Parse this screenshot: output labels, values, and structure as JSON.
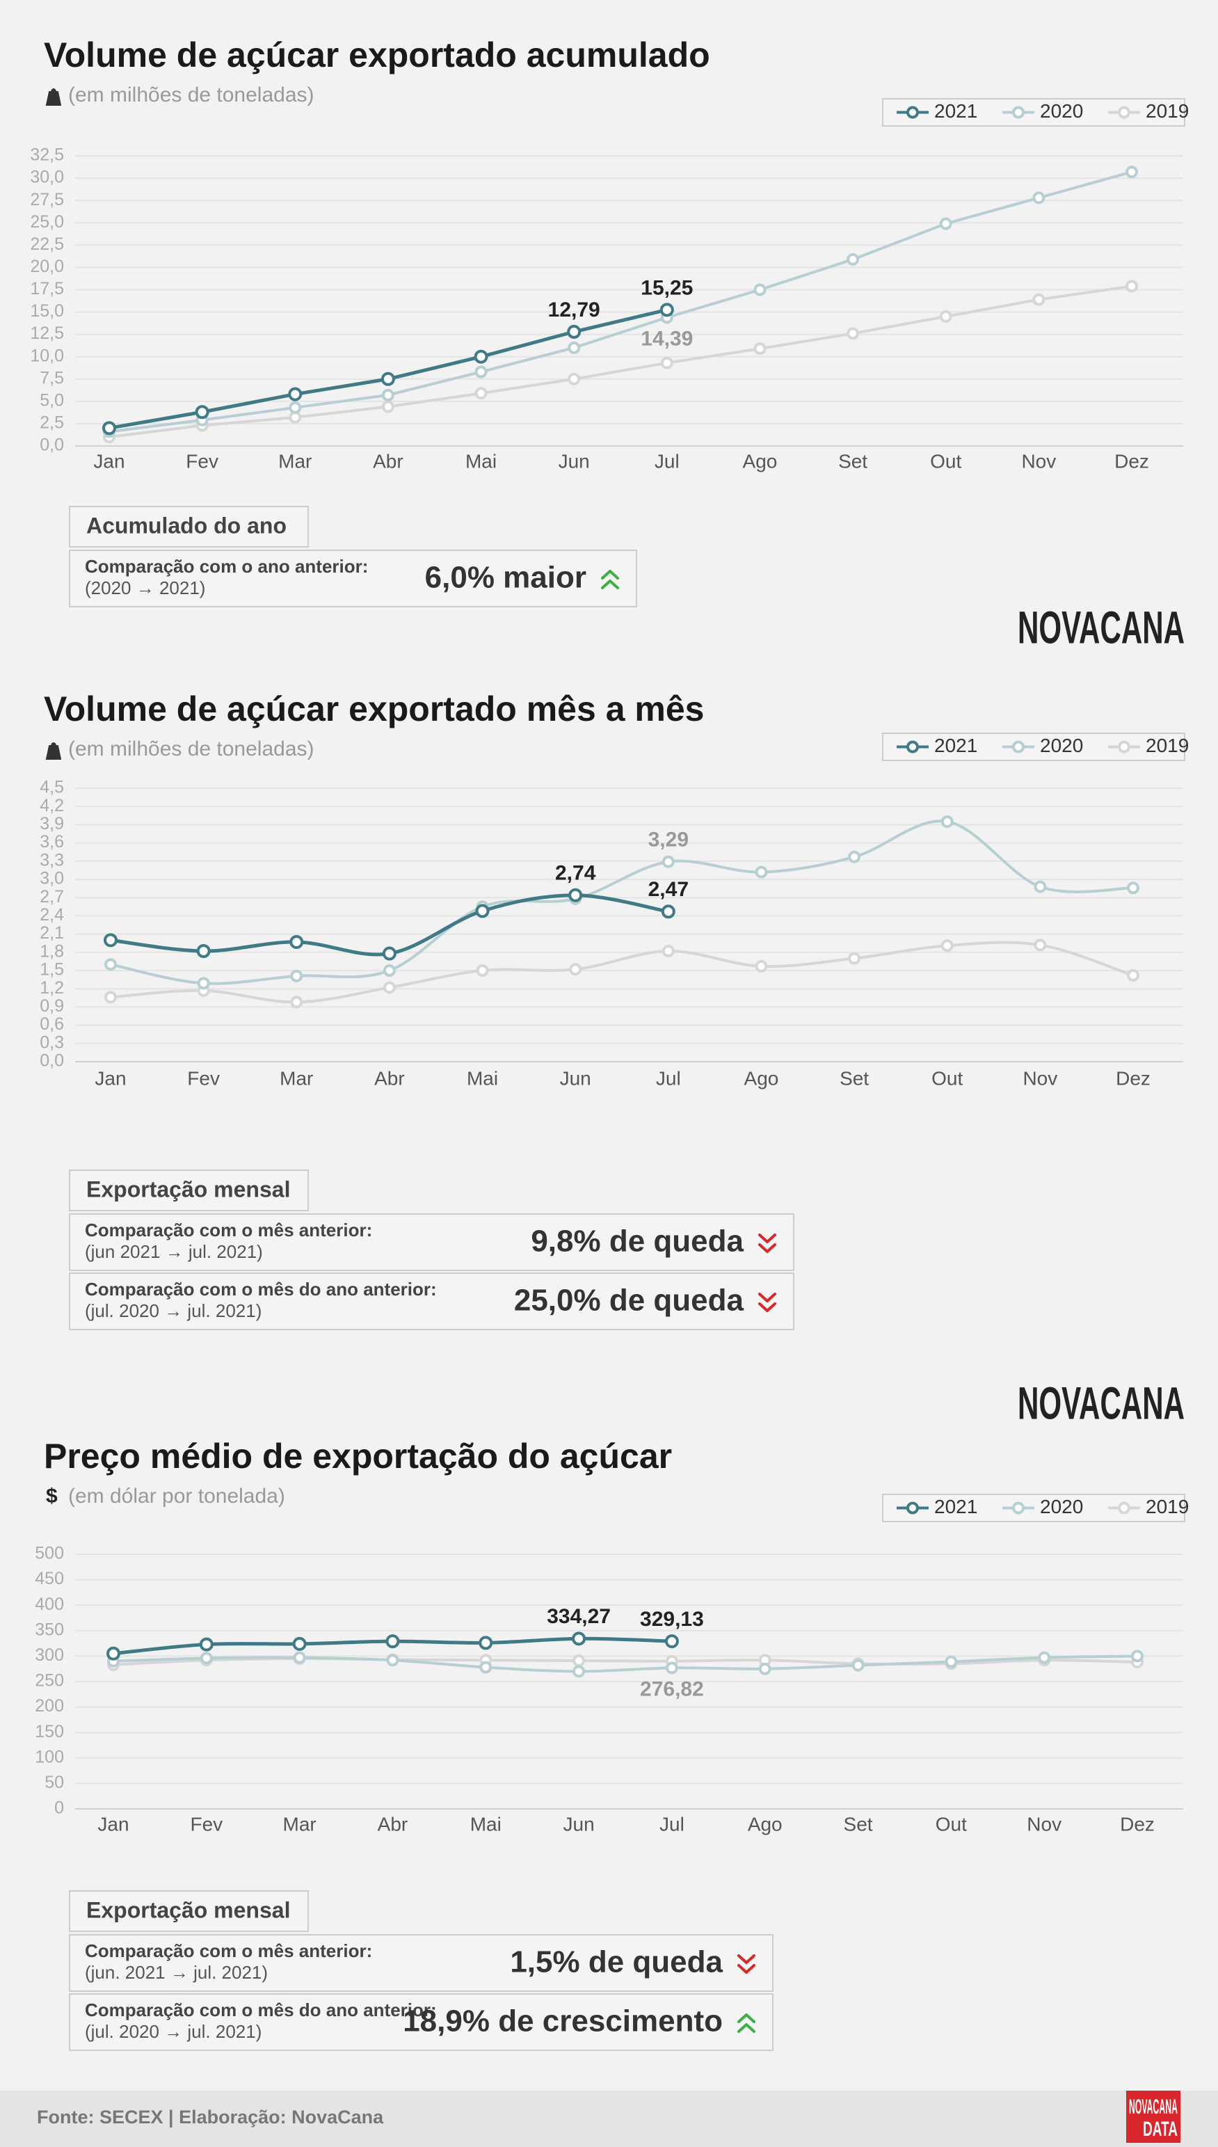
{
  "chart_data": [
    {
      "type": "line",
      "title": "Volume de açúcar exportado acumulado",
      "subtitle": "(em milhões de toneladas)",
      "smooth": false,
      "grid": true,
      "legend": "top-right",
      "categories": [
        "Jan",
        "Fev",
        "Mar",
        "Abr",
        "Mai",
        "Jun",
        "Jul",
        "Ago",
        "Set",
        "Out",
        "Nov",
        "Dez"
      ],
      "ylim": [
        0,
        32.5
      ],
      "yticks": [
        {
          "value": 0,
          "label": "0,0"
        },
        {
          "value": 2.5,
          "label": "2,5"
        },
        {
          "value": 5,
          "label": "5,0"
        },
        {
          "value": 7.5,
          "label": "7,5"
        },
        {
          "value": 10,
          "label": "10,0"
        },
        {
          "value": 12.5,
          "label": "12,5"
        },
        {
          "value": 15,
          "label": "15,0"
        },
        {
          "value": 17.5,
          "label": "17,5"
        },
        {
          "value": 20,
          "label": "20,0"
        },
        {
          "value": 22.5,
          "label": "22,5"
        },
        {
          "value": 25,
          "label": "25,0"
        },
        {
          "value": 27.5,
          "label": "27,5"
        },
        {
          "value": 30,
          "label": "30,0"
        },
        {
          "value": 32.5,
          "label": "32,5"
        }
      ],
      "series": [
        {
          "name": "2021",
          "color": "#3f7a86",
          "values": [
            2.0,
            3.8,
            5.8,
            7.5,
            10.0,
            12.79,
            15.25,
            null,
            null,
            null,
            null,
            null
          ],
          "value_labels": [
            null,
            null,
            null,
            null,
            null,
            "12,79",
            "15,25",
            null,
            null,
            null,
            null,
            null
          ]
        },
        {
          "name": "2020",
          "color": "#b7cfd3",
          "values": [
            1.6,
            2.9,
            4.3,
            5.7,
            8.3,
            11.0,
            14.39,
            17.5,
            20.9,
            24.9,
            27.8,
            30.7
          ],
          "value_labels": [
            null,
            null,
            null,
            null,
            null,
            null,
            "14,39",
            null,
            null,
            null,
            null,
            null
          ]
        },
        {
          "name": "2019",
          "color": "#d6d6d6",
          "values": [
            1.0,
            2.3,
            3.2,
            4.4,
            5.9,
            7.5,
            9.3,
            10.9,
            12.6,
            14.5,
            16.4,
            17.9
          ]
        }
      ]
    },
    {
      "type": "line",
      "title": "Volume de açúcar exportado mês a mês",
      "subtitle": "(em milhões de toneladas)",
      "smooth": true,
      "grid": true,
      "legend": "top-right",
      "categories": [
        "Jan",
        "Fev",
        "Mar",
        "Abr",
        "Mai",
        "Jun",
        "Jul",
        "Ago",
        "Set",
        "Out",
        "Nov",
        "Dez"
      ],
      "ylim": [
        0,
        4.5
      ],
      "yticks": [
        {
          "value": 0,
          "label": "0,0"
        },
        {
          "value": 0.3,
          "label": "0,3"
        },
        {
          "value": 0.6,
          "label": "0,6"
        },
        {
          "value": 0.9,
          "label": "0,9"
        },
        {
          "value": 1.2,
          "label": "1,2"
        },
        {
          "value": 1.5,
          "label": "1,5"
        },
        {
          "value": 1.8,
          "label": "1,8"
        },
        {
          "value": 2.1,
          "label": "2,1"
        },
        {
          "value": 2.4,
          "label": "2,4"
        },
        {
          "value": 2.7,
          "label": "2,7"
        },
        {
          "value": 3.0,
          "label": "3,0"
        },
        {
          "value": 3.3,
          "label": "3,3"
        },
        {
          "value": 3.6,
          "label": "3,6"
        },
        {
          "value": 3.9,
          "label": "3,9"
        },
        {
          "value": 4.2,
          "label": "4,2"
        },
        {
          "value": 4.5,
          "label": "4,5"
        }
      ],
      "series": [
        {
          "name": "2021",
          "color": "#3f7a86",
          "values": [
            2.0,
            1.82,
            1.97,
            1.78,
            2.48,
            2.74,
            2.47,
            null,
            null,
            null,
            null,
            null
          ],
          "value_labels": [
            null,
            null,
            null,
            null,
            null,
            "2,74",
            "2,47",
            null,
            null,
            null,
            null,
            null
          ]
        },
        {
          "name": "2020",
          "color": "#b7cfd3",
          "values": [
            1.6,
            1.29,
            1.41,
            1.5,
            2.55,
            2.68,
            3.29,
            3.12,
            3.37,
            3.95,
            2.88,
            2.86
          ],
          "value_labels": [
            null,
            null,
            null,
            null,
            null,
            null,
            "3,29",
            null,
            null,
            null,
            null,
            null
          ]
        },
        {
          "name": "2019",
          "color": "#d6d6d6",
          "values": [
            1.06,
            1.17,
            0.98,
            1.22,
            1.5,
            1.52,
            1.82,
            1.57,
            1.7,
            1.91,
            1.92,
            1.42
          ]
        }
      ]
    },
    {
      "type": "line",
      "title": "Preço médio de exportação do açúcar",
      "subtitle": "(em dólar por tonelada)",
      "unit_symbol": "$",
      "smooth": true,
      "grid": true,
      "legend": "top-right",
      "categories": [
        "Jan",
        "Fev",
        "Mar",
        "Abr",
        "Mai",
        "Jun",
        "Jul",
        "Ago",
        "Set",
        "Out",
        "Nov",
        "Dez"
      ],
      "ylim": [
        0,
        500
      ],
      "yticks": [
        0,
        50,
        100,
        150,
        200,
        250,
        300,
        350,
        400,
        450,
        500
      ],
      "series": [
        {
          "name": "2021",
          "color": "#3f7a86",
          "values": [
            305,
            323,
            324,
            329,
            326,
            334.27,
            329.13,
            null,
            null,
            null,
            null,
            null
          ],
          "value_labels": [
            null,
            null,
            null,
            null,
            null,
            "334,27",
            "329,13",
            null,
            null,
            null,
            null,
            null
          ]
        },
        {
          "name": "2020",
          "color": "#b7cfd3",
          "values": [
            290,
            296,
            297,
            292,
            278,
            270,
            276.82,
            275,
            282,
            289,
            297,
            300
          ],
          "value_labels": [
            null,
            null,
            null,
            null,
            null,
            null,
            "276,82",
            null,
            null,
            null,
            null,
            null
          ]
        },
        {
          "name": "2019",
          "color": "#d6d6d6",
          "values": [
            283,
            292,
            295,
            293,
            292,
            291,
            290,
            292,
            285,
            285,
            292,
            288
          ]
        }
      ]
    }
  ],
  "summaries": [
    {
      "title": "Acumulado do ano",
      "rows": [
        {
          "label": "Comparação com o ano anterior:",
          "period": "(2020 → 2021)",
          "result": "6,0% maior",
          "trend": "up"
        }
      ]
    },
    {
      "title": "Exportação mensal",
      "rows": [
        {
          "label": "Comparação com o mês anterior:",
          "period": "(jun 2021 → jul. 2021)",
          "result": "9,8% de queda",
          "trend": "down"
        },
        {
          "label": "Comparação com o mês do ano anterior:",
          "period": "(jul. 2020 → jul. 2021)",
          "result": "25,0% de queda",
          "trend": "down"
        }
      ]
    },
    {
      "title": "Exportação mensal",
      "rows": [
        {
          "label": "Comparação com o mês anterior:",
          "period": "(jun. 2021 → jul. 2021)",
          "result": "1,5% de queda",
          "trend": "down"
        },
        {
          "label": "Comparação com o mês do ano anterior:",
          "period": "(jul. 2020 → jul. 2021)",
          "result": "18,9% de crescimento",
          "trend": "up"
        }
      ]
    }
  ],
  "logo": "NOVACANA",
  "footer": {
    "source": "Fonte: SECEX | Elaboração: NovaCana",
    "logo_lines": [
      "NOVACANA",
      "DATA"
    ]
  }
}
